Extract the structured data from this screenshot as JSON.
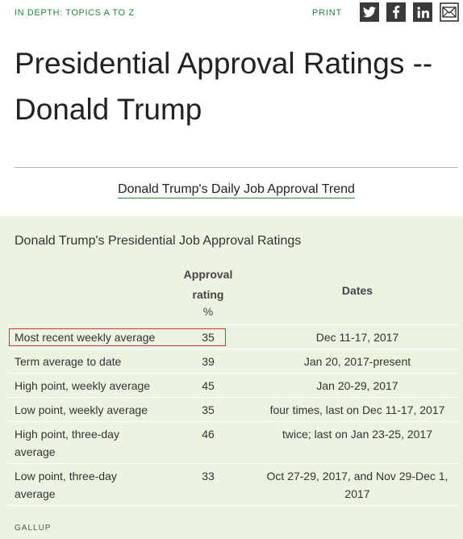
{
  "header": {
    "breadcrumb": "IN DEPTH: TOPICS A TO Z",
    "print_label": "PRINT",
    "share_icons": [
      "twitter-icon",
      "facebook-icon",
      "linkedin-icon",
      "mail-icon"
    ]
  },
  "page": {
    "title": "Presidential Approval Ratings -- Donald Trump",
    "trend_link": "Donald Trump's Daily Job Approval Trend"
  },
  "table": {
    "title": "Donald Trump's Presidential Job Approval Ratings",
    "headers": {
      "rating_line1": "Approval",
      "rating_line2": "rating",
      "rating_unit": "%",
      "dates": "Dates"
    },
    "rows": [
      {
        "label": "Most recent weekly average",
        "rating": "35",
        "dates": "Dec 11-17, 2017"
      },
      {
        "label": "Term average to date",
        "rating": "39",
        "dates": "Jan 20, 2017-present"
      },
      {
        "label": "High point, weekly average",
        "rating": "45",
        "dates": "Jan 20-29, 2017"
      },
      {
        "label": "Low point, weekly average",
        "rating": "35",
        "dates": "four times, last on Dec 11-17, 2017"
      },
      {
        "label": "High point, three-day average",
        "rating": "46",
        "dates": "twice; last on Jan 23-25, 2017"
      },
      {
        "label": "Low point, three-day average",
        "rating": "33",
        "dates": "Oct 27-29, 2017, and Nov 29-Dec 1, 2017"
      }
    ],
    "source": "GALLUP"
  },
  "colors": {
    "accent_green": "#22863a",
    "panel_bg": "#edf3e1",
    "highlight_border": "#cc3333"
  }
}
